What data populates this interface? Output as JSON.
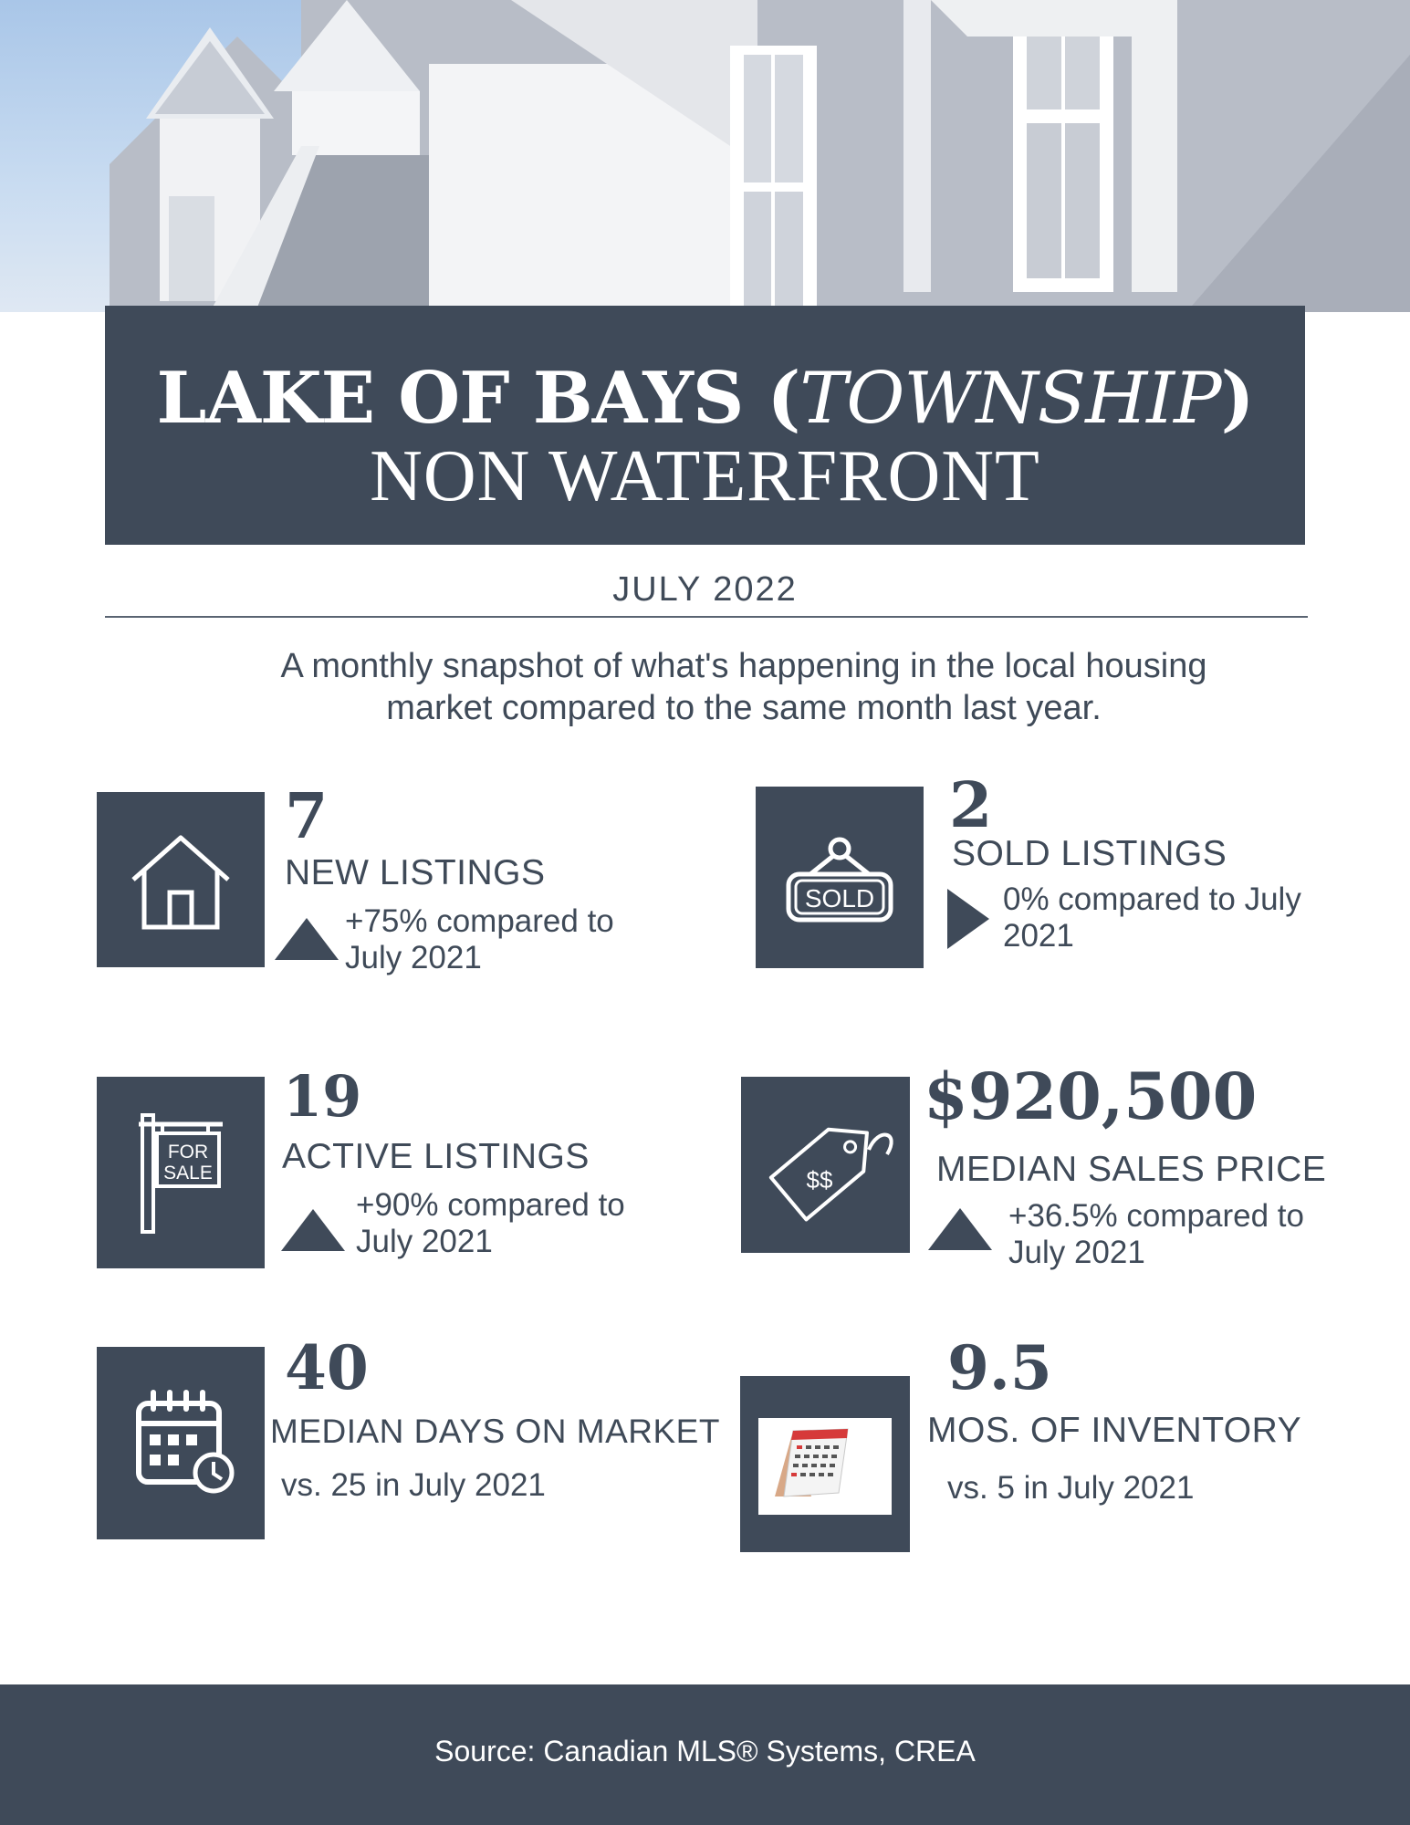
{
  "title": {
    "line1_prefix": "LAKE OF BAYS (",
    "line1_italic": "TOWNSHIP",
    "line1_suffix": ")",
    "line2": "NON WATERFRONT"
  },
  "date": "JULY  2022",
  "subtitle_line1": "A monthly snapshot of what's happening in the local housing",
  "subtitle_line2": "market compared to the same month last year.",
  "stats": {
    "new_listings": {
      "value": "7",
      "label": "NEW LISTINGS",
      "compare_line1": "+75% compared to",
      "compare_line2": "July 2021",
      "trend": "up",
      "icon": "house-icon"
    },
    "sold_listings": {
      "value": "2",
      "label": "SOLD LISTINGS",
      "compare_line1": "0% compared to July",
      "compare_line2": "2021",
      "trend": "flat",
      "icon": "sold-sign-icon",
      "icon_text": "SOLD"
    },
    "active_listings": {
      "value": "19",
      "label": "ACTIVE LISTINGS",
      "compare_line1": "+90% compared to",
      "compare_line2": "July 2021",
      "trend": "up",
      "icon": "for-sale-sign-icon",
      "icon_text_1": "FOR",
      "icon_text_2": "SALE"
    },
    "median_price": {
      "value": "$920,500",
      "label": "MEDIAN SALES PRICE",
      "compare_line1": "+36.5% compared to",
      "compare_line2": "July 2021",
      "trend": "up",
      "icon": "price-tag-icon",
      "icon_text": "$$"
    },
    "days_on_market": {
      "value": "40",
      "label": "MEDIAN DAYS ON MARKET",
      "compare": "vs. 25 in July 2021",
      "icon": "calendar-clock-icon"
    },
    "inventory": {
      "value": "9.5",
      "label": "MOS. OF INVENTORY",
      "compare": "vs. 5 in July  2021",
      "icon": "desk-calendar-icon"
    }
  },
  "footer": "Source: Canadian MLS® Systems, CREA",
  "colors": {
    "primary": "#3f4a59",
    "text": "#3f4a58",
    "background": "#ffffff"
  }
}
